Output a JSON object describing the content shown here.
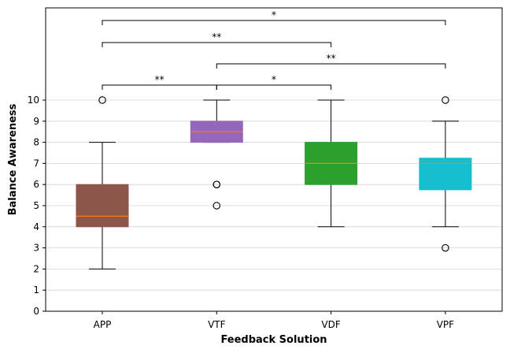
{
  "chart_data": {
    "type": "box",
    "title": "",
    "xlabel": "Feedback Solution",
    "ylabel": "Balance Awareness",
    "ylim": [
      0,
      10
    ],
    "yticks": [
      0,
      1,
      2,
      3,
      4,
      5,
      6,
      7,
      8,
      9,
      10
    ],
    "grid": "horizontal",
    "categories": [
      "APP",
      "VTF",
      "VDF",
      "VPF"
    ],
    "boxes": [
      {
        "category": "APP",
        "color": "#8c564b",
        "q1": 4.0,
        "median": 4.5,
        "q3": 6.0,
        "whisker_low": 2,
        "whisker_high": 8,
        "outliers": [
          10
        ]
      },
      {
        "category": "VTF",
        "color": "#9467bd",
        "q1": 8.0,
        "median": 8.5,
        "q3": 9.0,
        "whisker_low": 8,
        "whisker_high": 10,
        "outliers": [
          6,
          6,
          5
        ]
      },
      {
        "category": "VDF",
        "color": "#2ca02c",
        "q1": 6.0,
        "median": 7.0,
        "q3": 8.0,
        "whisker_low": 4,
        "whisker_high": 10,
        "outliers": []
      },
      {
        "category": "VPF",
        "color": "#17becf",
        "q1": 5.75,
        "median": 7.0,
        "q3": 7.25,
        "whisker_low": 4,
        "whisker_high": 9,
        "outliers": [
          10,
          3
        ]
      }
    ],
    "median_color": "#ff7f0e",
    "significance": [
      {
        "from": "APP",
        "to": "VPF",
        "label": "*",
        "level": 4
      },
      {
        "from": "APP",
        "to": "VDF",
        "label": "**",
        "level": 3
      },
      {
        "from": "VTF",
        "to": "VPF",
        "label": "**",
        "level": 2
      },
      {
        "from": "APP",
        "to": "VTF",
        "label": "**",
        "level": 1
      },
      {
        "from": "VTF",
        "to": "VDF",
        "label": "*",
        "level": 1
      }
    ]
  }
}
